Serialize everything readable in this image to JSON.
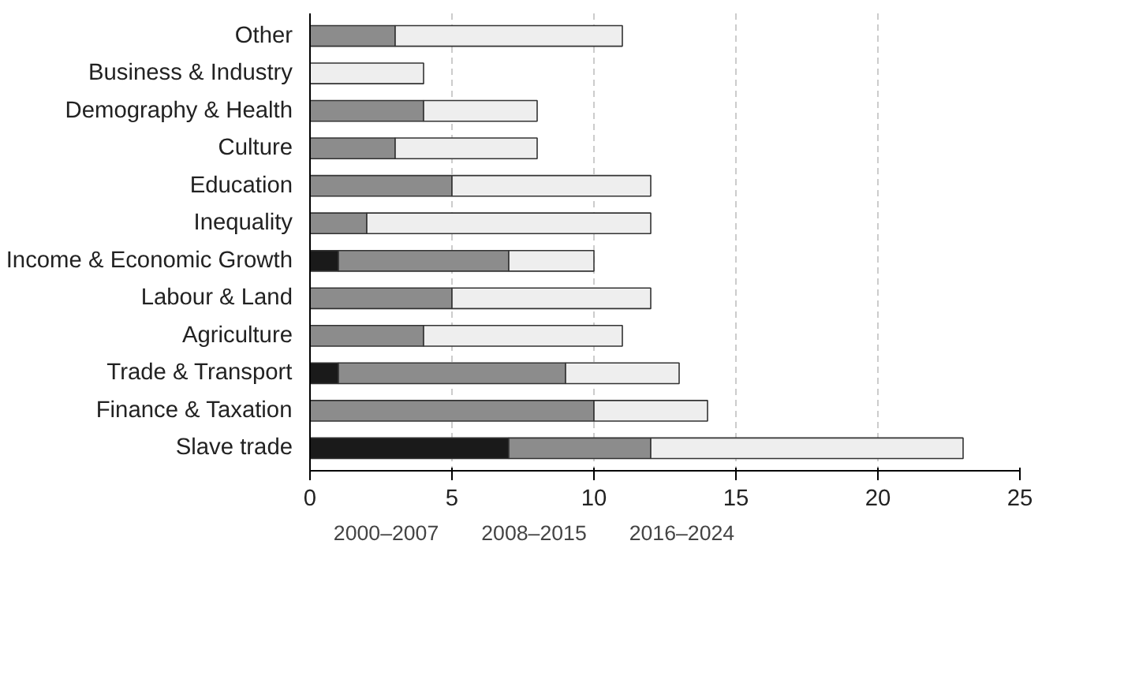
{
  "chart_data": {
    "type": "bar",
    "orientation": "horizontal",
    "stacked": true,
    "categories": [
      "Other",
      "Business & Industry",
      "Demography & Health",
      "Culture",
      "Education",
      "Inequality",
      "Income & Economic Growth",
      "Labour & Land",
      "Agriculture",
      "Trade & Transport",
      "Finance & Taxation",
      "Slave trade"
    ],
    "series": [
      {
        "name": "2000–2007",
        "color": "#1a1a1a",
        "values": [
          0,
          0,
          0,
          0,
          0,
          0,
          1,
          0,
          0,
          1,
          0,
          7
        ]
      },
      {
        "name": "2008–2015",
        "color": "#8c8c8c",
        "values": [
          3,
          0,
          4,
          3,
          5,
          2,
          6,
          5,
          4,
          8,
          10,
          5
        ]
      },
      {
        "name": "2016–2024",
        "color": "#eeeeee",
        "values": [
          8,
          4,
          4,
          5,
          7,
          10,
          3,
          7,
          7,
          4,
          4,
          11
        ]
      }
    ],
    "xlim": [
      0,
      25
    ],
    "xticks": [
      0,
      5,
      10,
      15,
      20,
      25
    ],
    "grid": "x",
    "legend": "bottom"
  }
}
